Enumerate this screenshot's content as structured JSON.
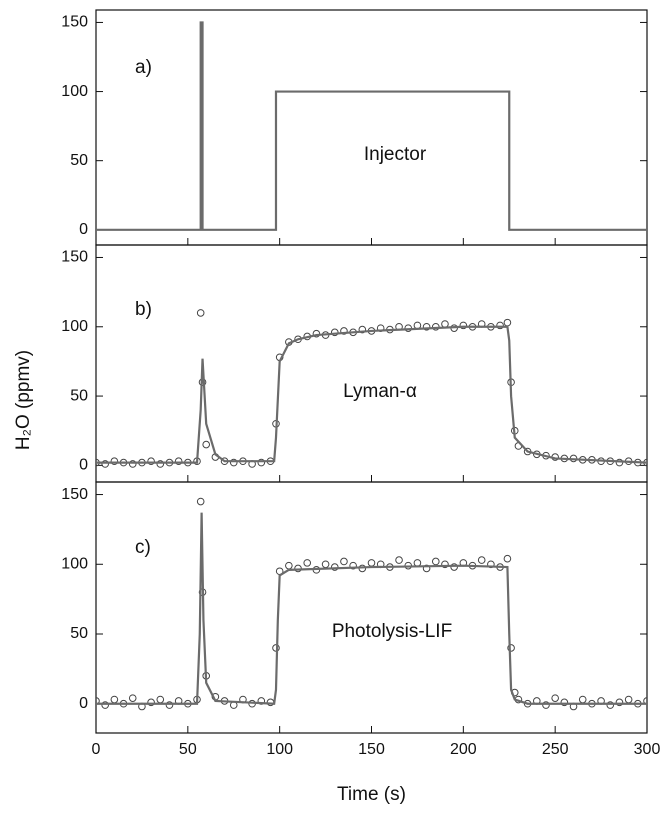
{
  "chart_data": [
    {
      "type": "line",
      "xlim": [
        0,
        300
      ],
      "xticks": [
        0,
        50,
        100,
        150,
        200,
        250,
        300
      ],
      "ylim": [
        -11,
        159
      ],
      "yticks": [
        0,
        50,
        100,
        150
      ],
      "annotations": [
        "a)",
        "Injector"
      ],
      "series": [
        {
          "color": "#6b6b6b",
          "marker": "none",
          "x": [
            0,
            57,
            57,
            58,
            58,
            98,
            98,
            225,
            225,
            300
          ],
          "values": [
            0,
            0,
            150,
            150,
            0,
            0,
            100,
            100,
            0,
            0
          ]
        }
      ]
    },
    {
      "type": "line",
      "xlim": [
        0,
        300
      ],
      "xticks": [
        0,
        50,
        100,
        150,
        200,
        250,
        300
      ],
      "ylim": [
        -12,
        159
      ],
      "yticks": [
        0,
        50,
        100,
        150
      ],
      "ylabel": "H₂O (ppmv)",
      "annotations": [
        "b)",
        "Lyman-α"
      ],
      "series": [
        {
          "color": "#444444",
          "marker": "circle",
          "x": [
            0,
            5,
            10,
            15,
            20,
            25,
            30,
            35,
            40,
            45,
            50,
            55,
            57,
            58,
            60,
            65,
            70,
            75,
            80,
            85,
            90,
            95,
            98,
            100,
            105,
            110,
            115,
            120,
            125,
            130,
            135,
            140,
            145,
            150,
            155,
            160,
            165,
            170,
            175,
            180,
            185,
            190,
            195,
            200,
            205,
            210,
            215,
            220,
            224,
            226,
            228,
            230,
            235,
            240,
            245,
            250,
            255,
            260,
            265,
            270,
            275,
            280,
            285,
            290,
            295,
            300
          ],
          "values": [
            2,
            1,
            3,
            2,
            1,
            2,
            3,
            1,
            2,
            3,
            2,
            3,
            110,
            60,
            15,
            6,
            3,
            2,
            3,
            1,
            2,
            3,
            30,
            78,
            89,
            91,
            93,
            95,
            94,
            96,
            97,
            96,
            98,
            97,
            99,
            98,
            100,
            99,
            101,
            100,
            100,
            102,
            99,
            101,
            100,
            102,
            100,
            101,
            103,
            60,
            25,
            14,
            10,
            8,
            7,
            6,
            5,
            5,
            4,
            4,
            3,
            3,
            2,
            3,
            2,
            2
          ]
        },
        {
          "color": "#6b6b6b",
          "marker": "none",
          "x": [
            0,
            55,
            57,
            58,
            60,
            65,
            70,
            97,
            98,
            100,
            105,
            110,
            120,
            150,
            200,
            224,
            225,
            226,
            228,
            235,
            250,
            300
          ],
          "values": [
            2,
            2,
            40,
            77,
            30,
            8,
            3,
            3,
            20,
            75,
            88,
            91,
            94,
            97,
            100,
            100,
            90,
            50,
            20,
            10,
            5,
            2
          ]
        }
      ]
    },
    {
      "type": "line",
      "xlim": [
        0,
        300
      ],
      "xticks": [
        0,
        50,
        100,
        150,
        200,
        250,
        300
      ],
      "ylim": [
        -21,
        159
      ],
      "yticks": [
        0,
        50,
        100,
        150
      ],
      "xlabel": "Time (s)",
      "annotations": [
        "c)",
        "Photolysis-LIF"
      ],
      "series": [
        {
          "color": "#444444",
          "marker": "circle",
          "x": [
            0,
            5,
            10,
            15,
            20,
            25,
            30,
            35,
            40,
            45,
            50,
            55,
            57,
            58,
            60,
            65,
            70,
            75,
            80,
            85,
            90,
            95,
            98,
            100,
            105,
            110,
            115,
            120,
            125,
            130,
            135,
            140,
            145,
            150,
            155,
            160,
            165,
            170,
            175,
            180,
            185,
            190,
            195,
            200,
            205,
            210,
            215,
            220,
            224,
            226,
            228,
            230,
            235,
            240,
            245,
            250,
            255,
            260,
            265,
            270,
            275,
            280,
            285,
            290,
            295,
            300
          ],
          "values": [
            2,
            -1,
            3,
            0,
            4,
            -2,
            1,
            3,
            -1,
            2,
            0,
            3,
            145,
            80,
            20,
            5,
            2,
            -1,
            3,
            0,
            2,
            1,
            40,
            95,
            99,
            97,
            101,
            96,
            100,
            98,
            102,
            99,
            97,
            101,
            100,
            98,
            103,
            99,
            101,
            97,
            102,
            100,
            98,
            101,
            99,
            103,
            100,
            98,
            104,
            40,
            8,
            3,
            0,
            2,
            -1,
            4,
            1,
            -2,
            3,
            0,
            2,
            -1,
            1,
            3,
            0,
            2
          ]
        },
        {
          "color": "#6b6b6b",
          "marker": "none",
          "x": [
            0,
            55,
            56.5,
            57.5,
            58.5,
            60,
            65,
            97,
            98,
            99,
            100,
            105,
            150,
            200,
            224,
            225,
            226,
            228,
            235,
            300
          ],
          "values": [
            0,
            0,
            50,
            137,
            60,
            15,
            2,
            0,
            10,
            60,
            92,
            96,
            98,
            99,
            98,
            50,
            10,
            3,
            0,
            0
          ]
        }
      ]
    }
  ]
}
